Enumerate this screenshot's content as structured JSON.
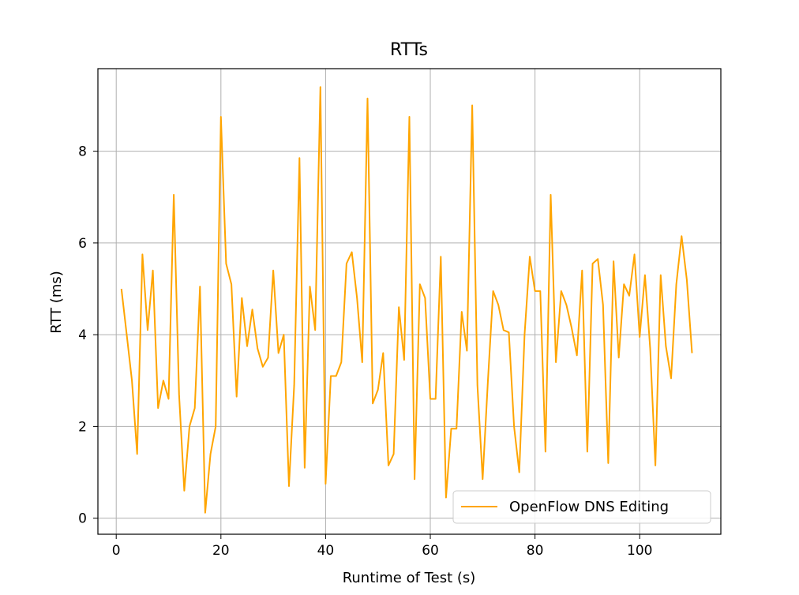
{
  "chart_data": {
    "type": "line",
    "title": "RTTs",
    "xlabel": "Runtime of Test (s)",
    "ylabel": "RTT (ms)",
    "xlim": [
      -3.5,
      115.5
    ],
    "ylim": [
      -0.35,
      9.8
    ],
    "xticks": [
      0,
      20,
      40,
      60,
      80,
      100
    ],
    "yticks": [
      0,
      2,
      4,
      6,
      8
    ],
    "grid": true,
    "legend_position": "lower-right",
    "series": [
      {
        "name": "OpenFlow DNS Editing",
        "color": "#ffa500",
        "x": [
          1,
          2,
          3,
          4,
          5,
          6,
          7,
          8,
          9,
          10,
          11,
          12,
          13,
          14,
          15,
          16,
          17,
          18,
          19,
          20,
          21,
          22,
          23,
          24,
          25,
          26,
          27,
          28,
          29,
          30,
          31,
          32,
          33,
          34,
          35,
          36,
          37,
          38,
          39,
          40,
          41,
          42,
          43,
          44,
          45,
          46,
          47,
          48,
          49,
          50,
          51,
          52,
          53,
          54,
          55,
          56,
          57,
          58,
          59,
          60,
          61,
          62,
          63,
          64,
          65,
          66,
          67,
          68,
          69,
          70,
          71,
          72,
          73,
          74,
          75,
          76,
          77,
          78,
          79,
          80,
          81,
          82,
          83,
          84,
          85,
          86,
          87,
          88,
          89,
          90,
          91,
          92,
          93,
          94,
          95,
          96,
          97,
          98,
          99,
          100,
          101,
          102,
          103,
          104,
          105,
          106,
          107,
          108,
          109,
          110
        ],
        "y": [
          5.0,
          4.0,
          3.0,
          1.4,
          5.75,
          4.1,
          5.4,
          2.4,
          3.0,
          2.6,
          7.05,
          2.7,
          0.6,
          2.0,
          2.4,
          5.05,
          0.12,
          1.4,
          2.0,
          8.75,
          5.55,
          5.1,
          2.65,
          4.8,
          3.75,
          4.55,
          3.7,
          3.3,
          3.5,
          5.4,
          3.6,
          4.0,
          0.7,
          2.9,
          7.85,
          1.1,
          5.05,
          4.1,
          9.4,
          0.75,
          3.1,
          3.1,
          3.4,
          5.55,
          5.8,
          4.8,
          3.4,
          9.15,
          2.5,
          2.8,
          3.6,
          1.15,
          1.4,
          4.6,
          3.45,
          8.75,
          0.85,
          5.1,
          4.8,
          2.6,
          2.6,
          5.7,
          0.45,
          1.95,
          1.95,
          4.5,
          3.65,
          9.0,
          2.9,
          0.85,
          3.0,
          4.95,
          4.65,
          4.1,
          4.05,
          2.0,
          1.0,
          4.0,
          5.7,
          4.95,
          4.95,
          1.45,
          7.05,
          3.4,
          4.95,
          4.65,
          4.15,
          3.55,
          5.4,
          1.45,
          5.55,
          5.65,
          4.65,
          1.2,
          5.6,
          3.5,
          5.1,
          4.85,
          5.75,
          3.95,
          5.3,
          3.7,
          1.15,
          5.3,
          3.75,
          3.05,
          5.1,
          6.15,
          5.2,
          3.6
        ]
      }
    ]
  }
}
